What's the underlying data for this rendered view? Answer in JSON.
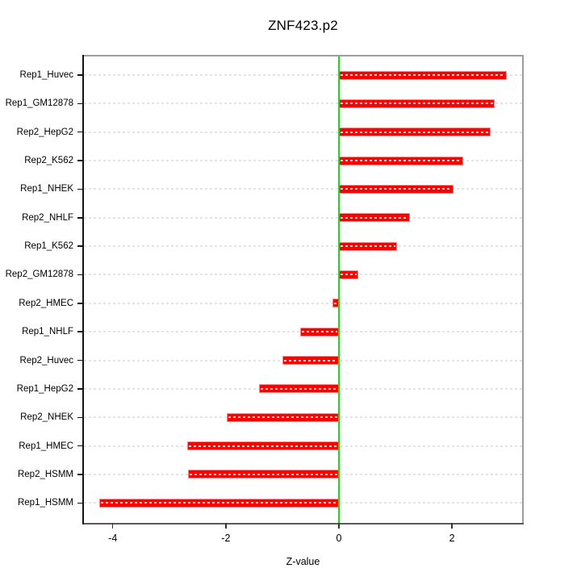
{
  "chart_data": {
    "type": "bar",
    "orientation": "horizontal",
    "title": "ZNF423.p2",
    "xlabel": "Z-value",
    "categories": [
      "Rep1_Huvec",
      "Rep1_GM12878",
      "Rep2_HepG2",
      "Rep2_K562",
      "Rep1_NHEK",
      "Rep2_NHLF",
      "Rep1_K562",
      "Rep2_GM12878",
      "Rep2_HMEC",
      "Rep1_NHLF",
      "Rep2_Huvec",
      "Rep1_HepG2",
      "Rep2_NHEK",
      "Rep1_HMEC",
      "Rep2_HSMM",
      "Rep1_HSMM"
    ],
    "values": [
      2.97,
      2.76,
      2.68,
      2.2,
      2.03,
      1.25,
      1.03,
      0.34,
      -0.11,
      -0.69,
      -1.0,
      -1.41,
      -1.99,
      -2.69,
      -2.67,
      -4.24
    ],
    "xlim": [
      -4.51,
      3.24
    ],
    "x_ticks": [
      "-4",
      "-2",
      "0",
      "2"
    ],
    "x_tick_values": [
      -4,
      -2,
      0,
      2
    ],
    "grid": "dashed-horizontal",
    "legend": "none",
    "bar_color": "#ff0000",
    "zero_line_color": "#00ee00",
    "grid_color": "#e3e3e3"
  }
}
